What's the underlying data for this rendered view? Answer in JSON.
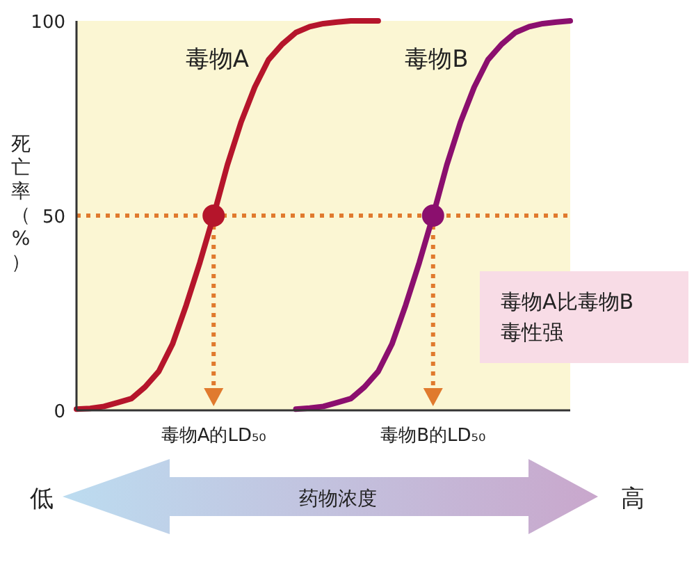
{
  "chart_data": {
    "type": "line",
    "ylabel": "死亡率（%）",
    "categories": [
      null,
      null,
      null,
      null,
      null,
      null,
      null,
      null,
      null,
      null,
      "毒物A的LD₅₀",
      null,
      null,
      null,
      null,
      null,
      null,
      null,
      null,
      null,
      null,
      null,
      null,
      null,
      null,
      null,
      "毒物B的LD₅₀",
      null,
      null,
      null,
      null,
      null,
      null,
      null,
      null,
      null,
      null
    ],
    "ylim": [
      0,
      100
    ],
    "yticks": [
      0,
      50,
      100
    ],
    "grid": false,
    "series": [
      {
        "name": "毒物A",
        "color": "#b5152b",
        "values": [
          0.3,
          0.5,
          1,
          2,
          3,
          6,
          10,
          17,
          27,
          38,
          50,
          63,
          74,
          83,
          90,
          94,
          97,
          98.5,
          99.3,
          99.7,
          100,
          100,
          100,
          null,
          null,
          null,
          null,
          null,
          null,
          null,
          null,
          null,
          null,
          null,
          null,
          null,
          null
        ]
      },
      {
        "name": "毒物B",
        "color": "#8b0f6e",
        "values": [
          null,
          null,
          null,
          null,
          null,
          null,
          null,
          null,
          null,
          null,
          null,
          null,
          null,
          null,
          null,
          null,
          0.3,
          0.6,
          1,
          2,
          3,
          6,
          10,
          17,
          27,
          38,
          50,
          63,
          74,
          83,
          90,
          94,
          97,
          98.5,
          99.3,
          99.7,
          100
        ]
      },
      {
        "type": "scatter",
        "x": [
          "毒物A的LD₅₀",
          "毒物B的LD₅₀"
        ],
        "values": [
          50,
          50
        ],
        "colors": [
          "#b5152b",
          "#8b0f6e"
        ],
        "marker": "circle"
      }
    ],
    "ref_lines": [
      {
        "axis": "y",
        "value": 50,
        "color": "#e07a2e",
        "line_style": "dotted"
      },
      {
        "axis": "x",
        "value": "毒物A的LD₅₀",
        "color": "#e07a2e",
        "line_style": "dotted"
      },
      {
        "axis": "x",
        "value": "毒物B的LD₅₀",
        "color": "#e07a2e",
        "line_style": "dotted"
      }
    ],
    "annotations": [
      "毒物A比毒物B\n毒性强",
      "低",
      "药物浓度",
      "高"
    ]
  }
}
